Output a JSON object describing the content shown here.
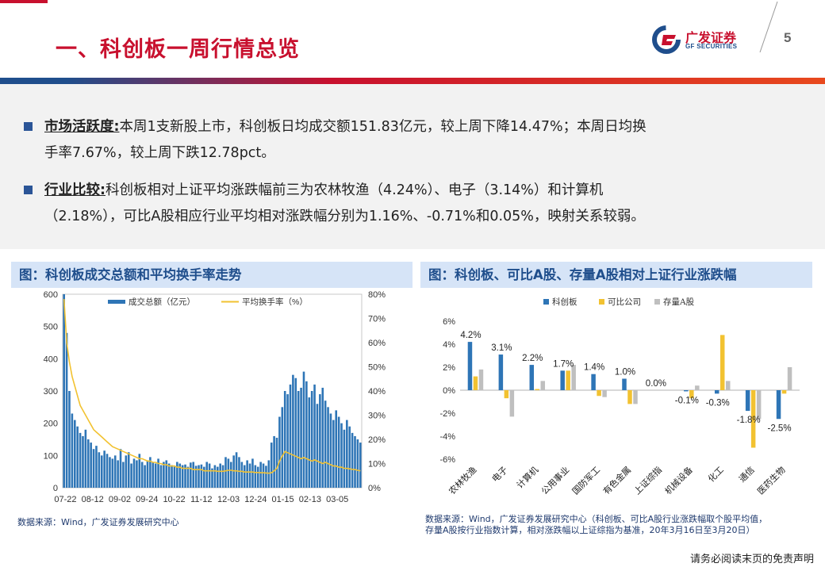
{
  "header": {
    "title": "一、科创板一周行情总览",
    "brand_name": "广发证券",
    "brand_sub": "GF SECURITIES",
    "page_number": "5"
  },
  "summary": {
    "bullets": [
      {
        "keyword": "市场活跃度:",
        "line1": "本周1支新股上市，科创板日均成交额151.83亿元，较上周下降14.47%；本周日均换",
        "line2": "手率7.67%，较上周下跌12.78pct。"
      },
      {
        "keyword": "行业比较:",
        "line1": "科创板相对上证平均涨跌幅前三为农林牧渔（4.24%）、电子（3.14%）和计算机",
        "line2": "（2.18%），可比A股相应行业平均相对涨跌幅分别为1.16%、-0.71%和0.05%，映射关系较弱。"
      }
    ]
  },
  "left_panel": {
    "heading": "图：科创板成交总额和平均换手率走势",
    "source": "数据来源：Wind，广发证券发展研究中心"
  },
  "right_panel": {
    "heading": "图：科创板、可比A股、存量A股相对上证行业涨跌幅",
    "source_line1": "数据来源：Wind，广发证券发展研究中心（科创板、可比A股行业涨跌幅取个股平均值，",
    "source_line2": "存量A股按行业指数计算，相对涨跌幅以上证综指为基准，20年3月16日至3月20日）"
  },
  "footer": {
    "disclaimer": "请务必阅读末页的免责声明"
  },
  "colors": {
    "blue": "#2e75b6",
    "gold": "#f2c231",
    "gray": "#bfbfbf",
    "red": "#c8102e",
    "navy": "#1f4e8c"
  },
  "chart_data": [
    {
      "type": "bar",
      "series": [
        {
          "name": "成交总额（亿元）",
          "axis": "left",
          "render": "bar",
          "values": [
            600,
            480,
            300,
            230,
            210,
            190,
            170,
            160,
            180,
            150,
            140,
            120,
            130,
            110,
            100,
            115,
            105,
            95,
            90,
            100,
            85,
            120,
            80,
            100,
            110,
            75,
            90,
            85,
            105,
            80,
            70,
            85,
            95,
            80,
            75,
            90,
            70,
            80,
            85,
            75,
            70,
            65,
            80,
            75,
            70,
            72,
            65,
            78,
            80,
            68,
            70,
            72,
            65,
            80,
            75,
            60,
            70,
            65,
            75,
            70,
            95,
            90,
            80,
            100,
            110,
            95,
            80,
            70,
            85,
            75,
            90,
            70,
            65,
            80,
            75,
            68,
            85,
            140,
            160,
            155,
            220,
            250,
            300,
            290,
            320,
            350,
            340,
            300,
            310,
            360,
            330,
            280,
            300,
            320,
            260,
            290,
            310,
            270,
            250,
            230,
            210,
            240,
            220,
            200,
            180,
            210,
            190,
            170,
            160,
            150,
            140
          ]
        },
        {
          "name": "平均换手率（%）",
          "axis": "right",
          "render": "line",
          "values": [
            78,
            60,
            52,
            46,
            42,
            38,
            34,
            32,
            30,
            28,
            26,
            24,
            23,
            22,
            21,
            20,
            19,
            18,
            17,
            16.5,
            16,
            15.5,
            15,
            14.5,
            14,
            13.5,
            13,
            12.5,
            12,
            12,
            11.5,
            11,
            11,
            10.5,
            10.5,
            10,
            10,
            9.5,
            9.5,
            9,
            9,
            9,
            8.5,
            8.5,
            8,
            8,
            8,
            8,
            7.5,
            7.5,
            7.5,
            7.5,
            7,
            7,
            7,
            7,
            7,
            6.8,
            6.8,
            6.8,
            7,
            7.2,
            7.2,
            7,
            7,
            6.8,
            6.8,
            6.5,
            6.5,
            6.5,
            6.5,
            6.3,
            6.3,
            6.2,
            6.2,
            6.1,
            6,
            6.2,
            7,
            8,
            11,
            13,
            15,
            14.5,
            14,
            13.5,
            13,
            12.5,
            12,
            12.5,
            12,
            11.5,
            11,
            11.5,
            11,
            10.5,
            10,
            10.5,
            10,
            9.5,
            9,
            9,
            8.5,
            8.5,
            8,
            8,
            7.8,
            7.6,
            7.5,
            7.2,
            7
          ]
        }
      ],
      "x_ticks": [
        "07-22",
        "08-12",
        "09-02",
        "09-24",
        "10-22",
        "11-12",
        "12-03",
        "12-24",
        "01-15",
        "02-13",
        "03-05"
      ],
      "y_left": {
        "ticks": [
          "0",
          "100",
          "200",
          "300",
          "400",
          "500",
          "600"
        ],
        "range": [
          0,
          600
        ]
      },
      "y_right": {
        "ticks": [
          "0%",
          "10%",
          "20%",
          "30%",
          "40%",
          "50%",
          "60%",
          "70%",
          "80%"
        ],
        "range": [
          0,
          80
        ]
      }
    },
    {
      "type": "bar",
      "categories": [
        "农林牧渔",
        "电子",
        "计算机",
        "公用事业",
        "国防军工",
        "有色金属",
        "上证综指",
        "机械设备",
        "化工",
        "通信",
        "医药生物"
      ],
      "series": [
        {
          "name": "科创板",
          "values": [
            4.2,
            3.1,
            2.2,
            1.7,
            1.4,
            1.0,
            0.0,
            -0.1,
            -0.3,
            -1.8,
            -2.5
          ]
        },
        {
          "name": "可比公司",
          "values": [
            1.2,
            -0.7,
            0.1,
            1.7,
            -0.5,
            -1.2,
            0.0,
            -0.7,
            4.8,
            -5.0,
            -0.3
          ]
        },
        {
          "name": "存量A股",
          "values": [
            1.8,
            -2.3,
            0.8,
            2.2,
            -0.6,
            -1.2,
            0.0,
            0.4,
            0.8,
            -2.5,
            2.0
          ]
        }
      ],
      "labels": [
        "4.2%",
        "3.1%",
        "2.2%",
        "1.7%",
        "1.4%",
        "1.0%",
        "0.0%",
        "-0.1%",
        "-0.3%",
        "-1.8%",
        "-2.5%"
      ],
      "y_ticks": [
        "6%",
        "4%",
        "2%",
        "0%",
        "-2%",
        "-4%",
        "-6%"
      ],
      "ylim": [
        -6,
        6
      ]
    }
  ]
}
